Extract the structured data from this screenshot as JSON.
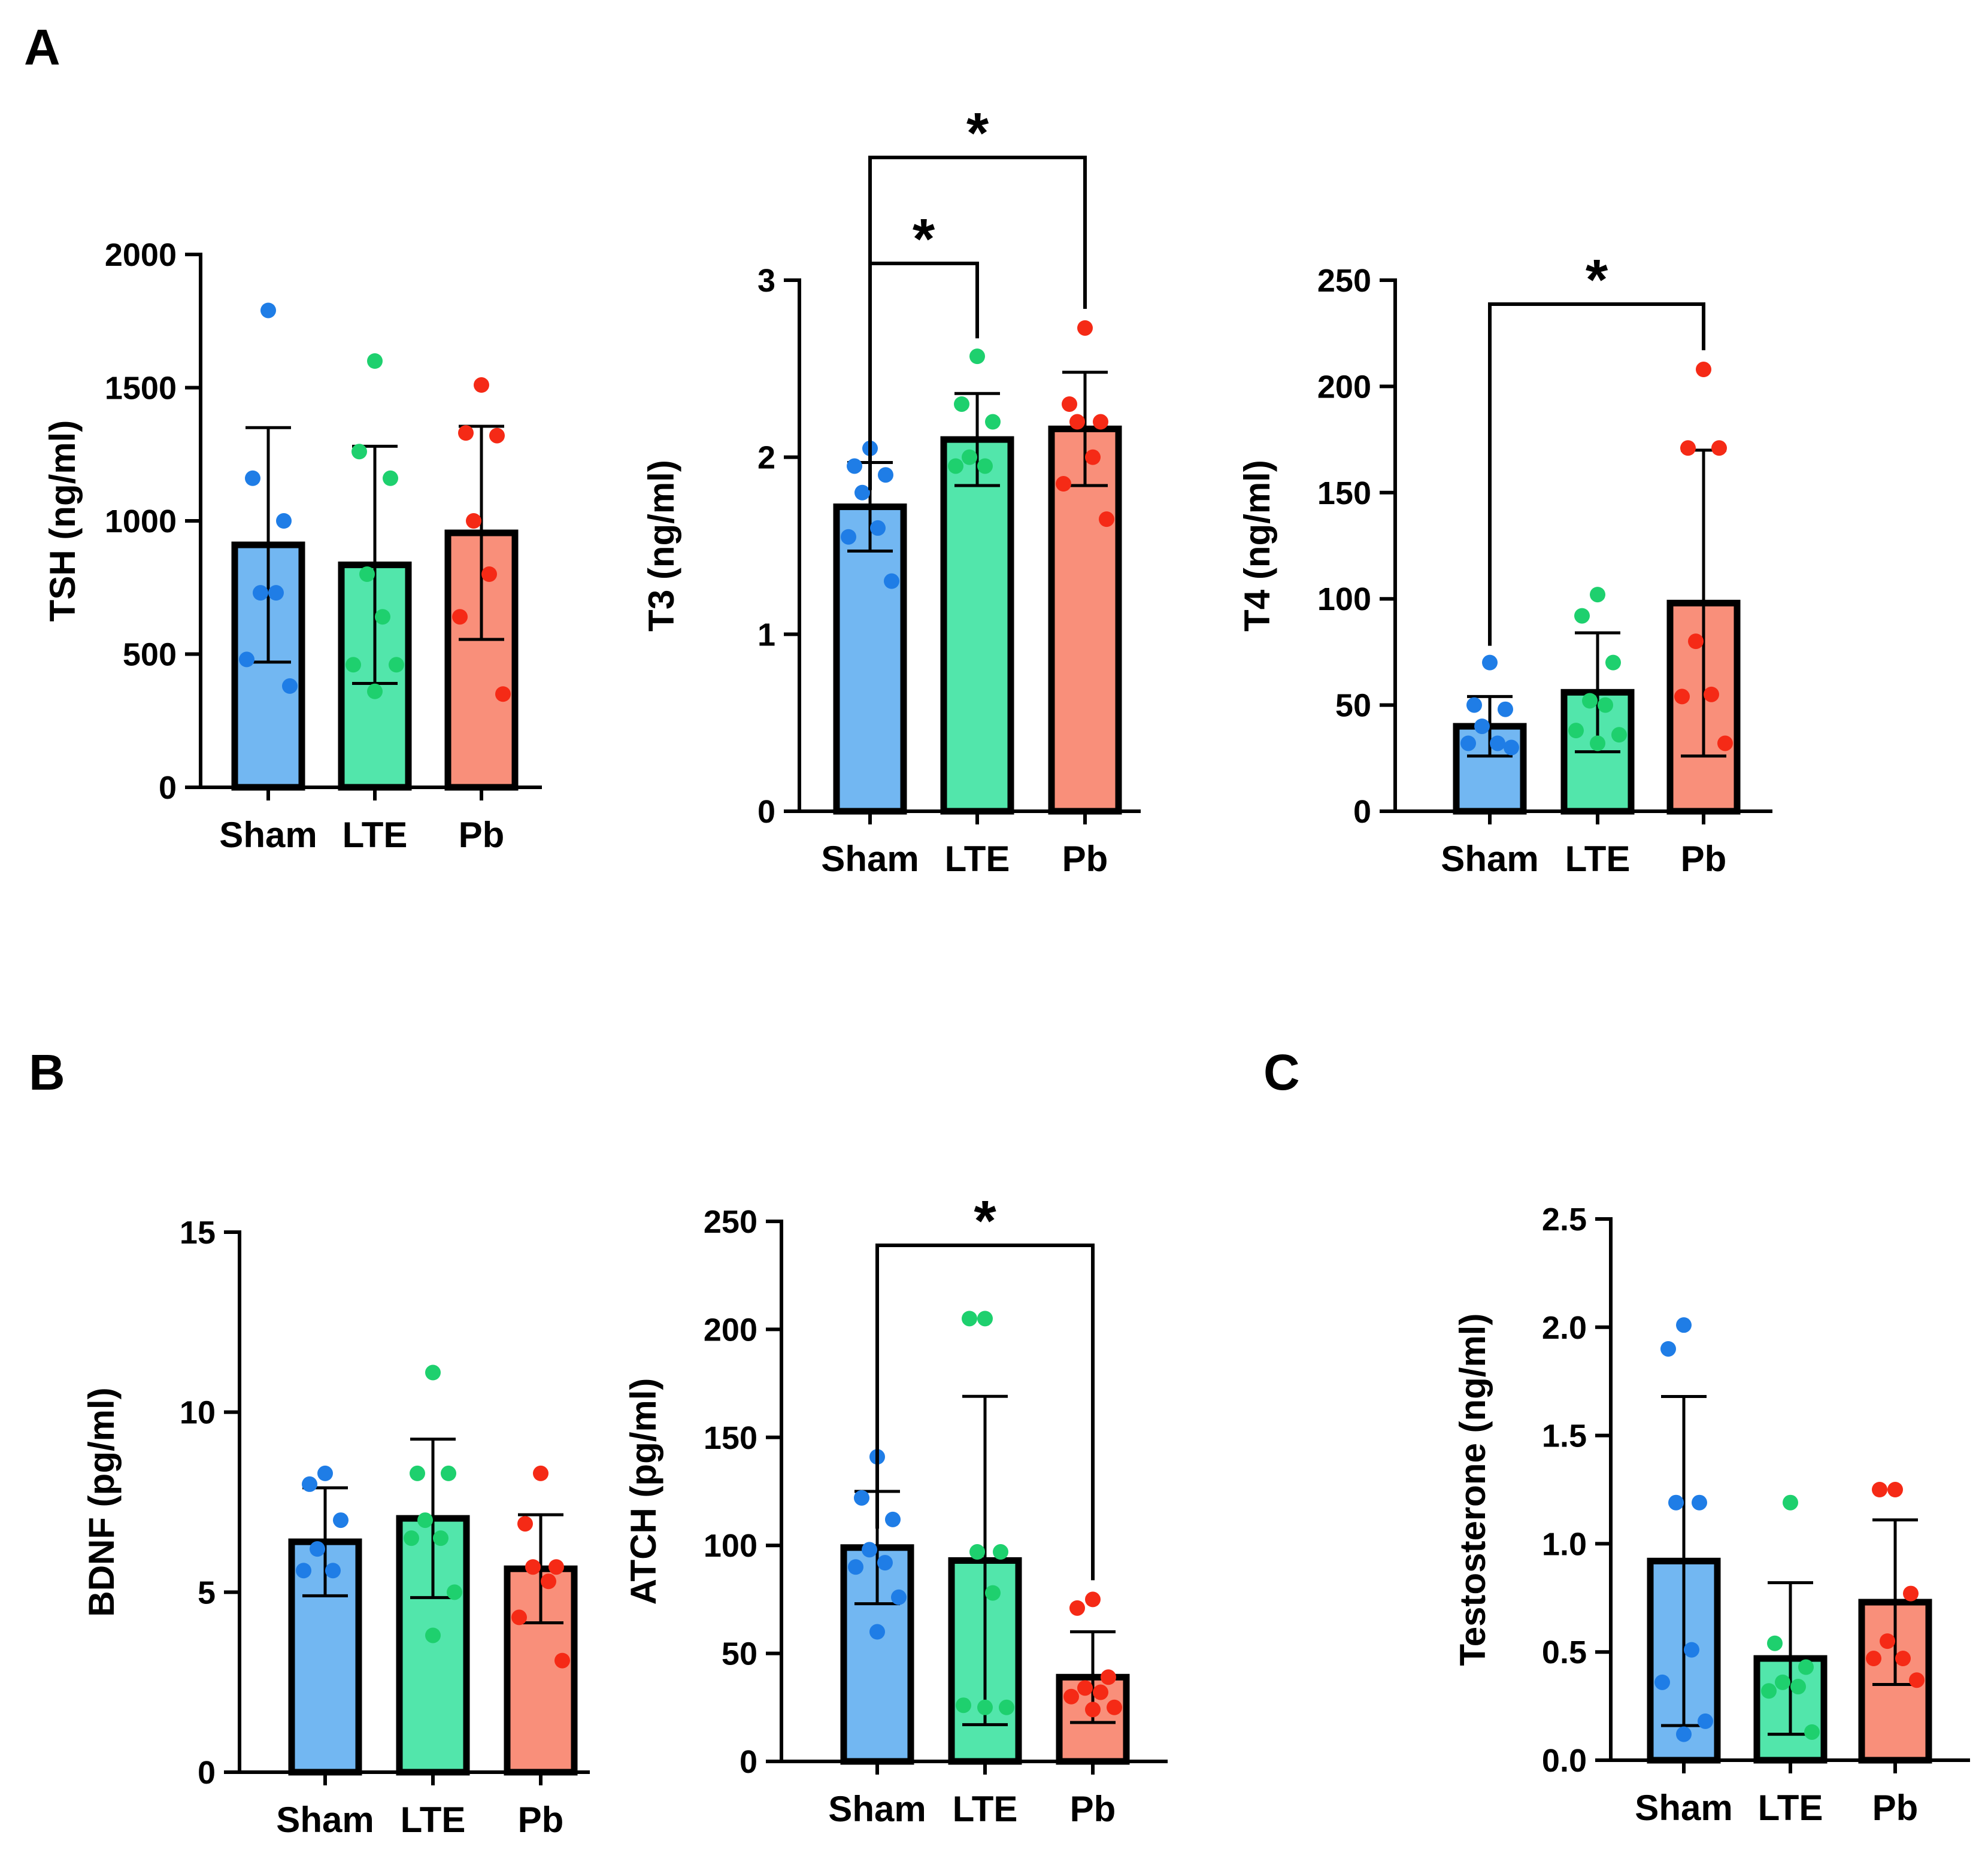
{
  "panel_labels": [
    "A",
    "B",
    "C"
  ],
  "colors": {
    "Sham": "#72b7f2",
    "LTE": "#52e6ab",
    "Pb": "#f98f7a",
    "dot_Sham": "#1f7de6",
    "dot_LTE": "#1ed06e",
    "dot_Pb": "#f52a16"
  },
  "chart_data": [
    {
      "id": "tsh",
      "type": "bar",
      "panel": "A",
      "ylabel": "TSH (ng/ml)",
      "ylim": [
        0,
        2000
      ],
      "yticks": [
        0,
        500,
        1000,
        1500,
        2000
      ],
      "ytick_labels": [
        "0",
        "500",
        "1000",
        "1500",
        "2000"
      ],
      "categories": [
        "Sham",
        "LTE",
        "Pb"
      ],
      "means": [
        910,
        835,
        955
      ],
      "sd": [
        440,
        445,
        400
      ],
      "points": [
        [
          1790,
          1160,
          1000,
          730,
          730,
          480,
          380
        ],
        [
          1600,
          1260,
          1160,
          800,
          640,
          460,
          460,
          360
        ],
        [
          1510,
          1330,
          1320,
          1000,
          800,
          640,
          350
        ]
      ],
      "comparisons": []
    },
    {
      "id": "t3",
      "type": "bar",
      "panel": "A",
      "ylabel": "T3 (ng/ml)",
      "ylim": [
        0,
        3
      ],
      "yticks": [
        0,
        1,
        2,
        3
      ],
      "ytick_labels": [
        "0",
        "1",
        "2",
        "3"
      ],
      "categories": [
        "Sham",
        "LTE",
        "Pb"
      ],
      "means": [
        1.72,
        2.1,
        2.16
      ],
      "sd": [
        0.25,
        0.26,
        0.32
      ],
      "points": [
        [
          2.05,
          1.95,
          1.9,
          1.8,
          1.6,
          1.55,
          1.3
        ],
        [
          2.57,
          2.3,
          2.2,
          2.0,
          1.95,
          1.95
        ],
        [
          2.73,
          2.3,
          2.2,
          2.2,
          2.0,
          1.85,
          1.65
        ]
      ],
      "comparisons": [
        {
          "from": 0,
          "to": 1,
          "label": "*"
        },
        {
          "from": 0,
          "to": 2,
          "label": "*"
        }
      ]
    },
    {
      "id": "t4",
      "type": "bar",
      "panel": "A",
      "ylabel": "T4 (ng/ml)",
      "ylim": [
        0,
        250
      ],
      "yticks": [
        0,
        50,
        100,
        150,
        200,
        250
      ],
      "ytick_labels": [
        "0",
        "50",
        "100",
        "150",
        "200",
        "250"
      ],
      "categories": [
        "Sham",
        "LTE",
        "Pb"
      ],
      "means": [
        40,
        56,
        98
      ],
      "sd": [
        14,
        28,
        72
      ],
      "points": [
        [
          70,
          50,
          48,
          40,
          32,
          32,
          30
        ],
        [
          102,
          92,
          70,
          52,
          50,
          38,
          36,
          32
        ],
        [
          208,
          171,
          171,
          80,
          55,
          54,
          32
        ]
      ],
      "comparisons": [
        {
          "from": 0,
          "to": 2,
          "label": "*"
        }
      ]
    },
    {
      "id": "bdnf",
      "type": "bar",
      "panel": "B",
      "ylabel": "BDNF (pg/ml)",
      "ylim": [
        0,
        15
      ],
      "yticks": [
        0,
        5,
        10,
        15
      ],
      "ytick_labels": [
        "0",
        "5",
        "10",
        "15"
      ],
      "categories": [
        "Sham",
        "LTE",
        "Pb"
      ],
      "means": [
        6.4,
        7.05,
        5.65
      ],
      "sd": [
        1.5,
        2.2,
        1.5
      ],
      "points": [
        [
          8.3,
          8.0,
          7.0,
          6.2,
          5.6,
          5.6
        ],
        [
          11.1,
          8.3,
          8.3,
          7.0,
          6.5,
          6.5,
          5.0,
          3.8
        ],
        [
          8.3,
          6.9,
          5.7,
          5.7,
          5.3,
          4.3,
          3.1
        ]
      ],
      "comparisons": []
    },
    {
      "id": "atch",
      "type": "bar",
      "panel": "B",
      "ylabel": "ATCH (pg/ml)",
      "ylim": [
        0,
        250
      ],
      "yticks": [
        0,
        50,
        100,
        150,
        200,
        250
      ],
      "ytick_labels": [
        "0",
        "50",
        "100",
        "150",
        "200",
        "250"
      ],
      "categories": [
        "Sham",
        "LTE",
        "Pb"
      ],
      "means": [
        99,
        93,
        39
      ],
      "sd": [
        26,
        76,
        21
      ],
      "points": [
        [
          141,
          122,
          112,
          98,
          92,
          90,
          76,
          60
        ],
        [
          205,
          205,
          97,
          97,
          78,
          26,
          25,
          25
        ],
        [
          75,
          71,
          39,
          34,
          32,
          30,
          25,
          24
        ]
      ],
      "comparisons": [
        {
          "from": 0,
          "to": 2,
          "label": "*"
        }
      ]
    },
    {
      "id": "testosterone",
      "type": "bar",
      "panel": "C",
      "ylabel": "Testosterone (ng/ml)",
      "ylim": [
        0,
        2.5
      ],
      "yticks": [
        0.0,
        0.5,
        1.0,
        1.5,
        2.0,
        2.5
      ],
      "ytick_labels": [
        "0.0",
        "0.5",
        "1.0",
        "1.5",
        "2.0",
        "2.5"
      ],
      "categories": [
        "Sham",
        "LTE",
        "Pb"
      ],
      "means": [
        0.92,
        0.47,
        0.73
      ],
      "sd": [
        0.76,
        0.35,
        0.38
      ],
      "points": [
        [
          2.01,
          1.9,
          1.19,
          1.19,
          0.51,
          0.36,
          0.18,
          0.12
        ],
        [
          1.19,
          0.54,
          0.43,
          0.36,
          0.34,
          0.32,
          0.13
        ],
        [
          1.25,
          1.25,
          0.77,
          0.55,
          0.47,
          0.47,
          0.37
        ]
      ],
      "comparisons": []
    }
  ]
}
